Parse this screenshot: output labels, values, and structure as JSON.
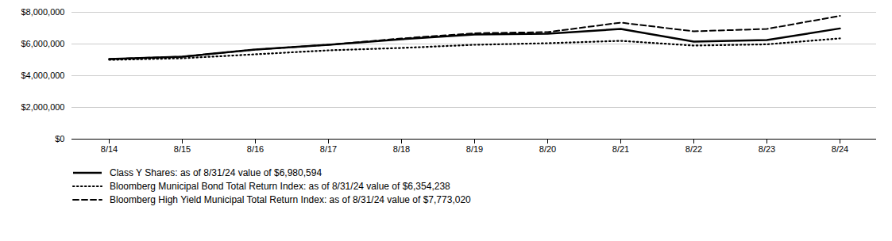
{
  "chart_data": {
    "type": "line",
    "categories": [
      "8/14",
      "8/15",
      "8/16",
      "8/17",
      "8/18",
      "8/19",
      "8/20",
      "8/21",
      "8/22",
      "8/23",
      "8/24"
    ],
    "series": [
      {
        "name": "Class Y Shares: as of 8/31/24 value of $6,980,594",
        "color": "#000000",
        "line_style": "solid",
        "values": [
          5050000,
          5200000,
          5650000,
          5950000,
          6300000,
          6600000,
          6650000,
          6950000,
          6150000,
          6250000,
          6980594
        ]
      },
      {
        "name": "Bloomberg Municipal Bond Total Return Index: as of 8/31/24 value of $6,354,238",
        "color": "#000000",
        "line_style": "dotted",
        "values": [
          5000000,
          5100000,
          5350000,
          5600000,
          5750000,
          5950000,
          6050000,
          6200000,
          5900000,
          5980000,
          6354238
        ]
      },
      {
        "name": "Bloomberg High Yield Municipal Total Return Index: as of 8/31/24 value of $7,773,020",
        "color": "#000000",
        "line_style": "dashed",
        "values": [
          5050000,
          5200000,
          5650000,
          5950000,
          6350000,
          6680000,
          6750000,
          7350000,
          6800000,
          6950000,
          7773020
        ]
      }
    ],
    "ylim": [
      0,
      8000000
    ],
    "yticks": [
      {
        "value": 0,
        "label": "$0"
      },
      {
        "value": 2000000,
        "label": "$2,000,000"
      },
      {
        "value": 4000000,
        "label": "$4,000,000"
      },
      {
        "value": 6000000,
        "label": "$6,000,000"
      },
      {
        "value": 8000000,
        "label": "$8,000,000"
      }
    ],
    "grid": true,
    "legend": "bottom"
  }
}
